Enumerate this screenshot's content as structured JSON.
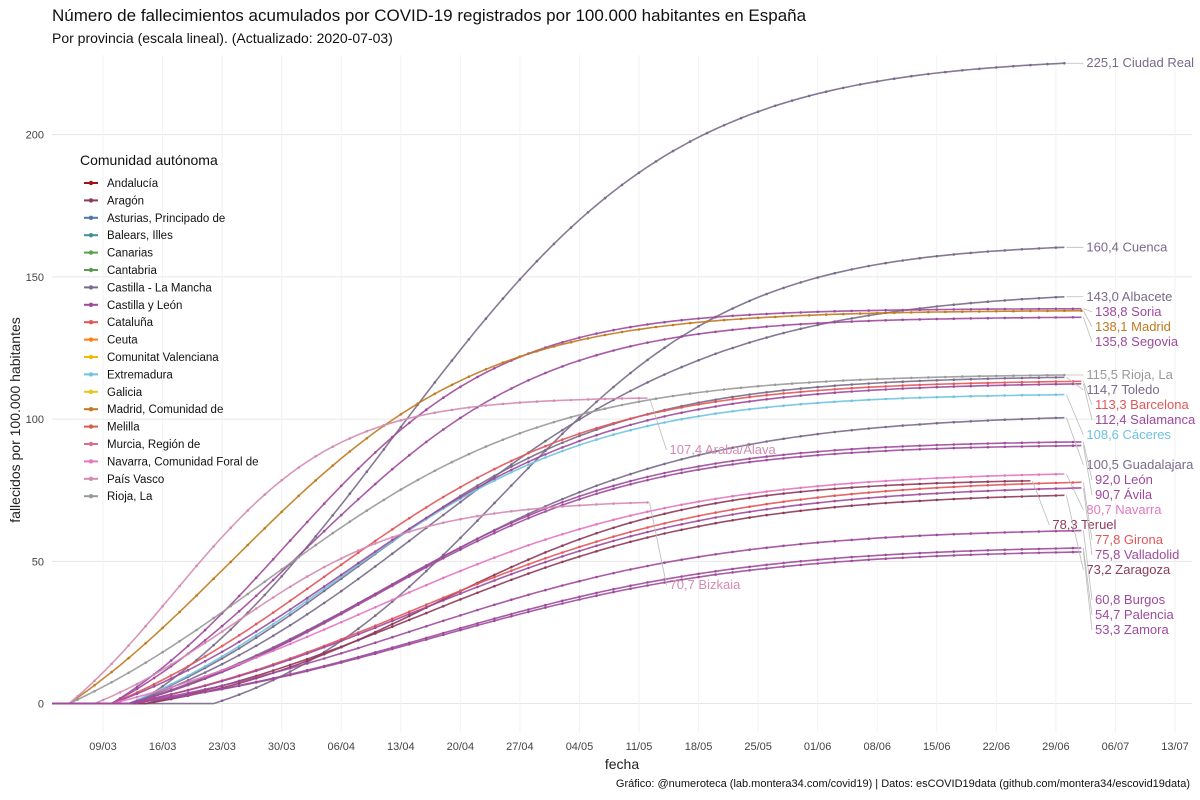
{
  "header": {
    "title": "Número de fallecimientos acumulados por COVID-19 registrados por 100.000 habitantes en España",
    "subtitle": "Por provincia  (escala lineal). (Actualizado: 2020-07-03)"
  },
  "caption": "Gráfico: @numeroteca (lab.montera34.com/covid19) | Datos: esCOVID19data (github.com/montera34/escovid19data)",
  "chart_data": {
    "type": "line",
    "xlabel": "fecha",
    "ylabel": "fallecidos por 100.000 habitantes",
    "x_ticks": [
      "09/03",
      "16/03",
      "23/03",
      "30/03",
      "06/04",
      "13/04",
      "20/04",
      "27/04",
      "04/05",
      "11/05",
      "18/05",
      "25/05",
      "01/06",
      "08/06",
      "15/06",
      "22/06",
      "29/06",
      "06/07",
      "13/07"
    ],
    "y_ticks": [
      0,
      50,
      100,
      150,
      200
    ],
    "xlim": [
      "2020-03-03",
      "2020-07-15"
    ],
    "ylim": [
      -10,
      228
    ],
    "grid": true,
    "legend": {
      "title": "Comunidad autónoma",
      "placement": "top-left",
      "entries": [
        {
          "name": "Andalucía",
          "color": "#a50f15"
        },
        {
          "name": "Aragón",
          "color": "#8e3a59"
        },
        {
          "name": "Asturias, Principado de",
          "color": "#4e79a7"
        },
        {
          "name": "Balears, Illes",
          "color": "#3f8f9e"
        },
        {
          "name": "Canarias",
          "color": "#59a14f"
        },
        {
          "name": "Cantabria",
          "color": "#5d9a53"
        },
        {
          "name": "Castilla - La Mancha",
          "color": "#7a6a8a"
        },
        {
          "name": "Castilla y León",
          "color": "#9e4a9c"
        },
        {
          "name": "Cataluña",
          "color": "#e15759"
        },
        {
          "name": "Ceuta",
          "color": "#ff7f0e"
        },
        {
          "name": "Comunitat Valenciana",
          "color": "#f5b800"
        },
        {
          "name": "Extremadura",
          "color": "#6fc3df"
        },
        {
          "name": "Galicia",
          "color": "#e6c619"
        },
        {
          "name": "Madrid, Comunidad de",
          "color": "#c07a1f"
        },
        {
          "name": "Melilla",
          "color": "#d4604d"
        },
        {
          "name": "Murcia, Región de",
          "color": "#e06c8c"
        },
        {
          "name": "Navarra, Comunidad Foral de",
          "color": "#e377c2"
        },
        {
          "name": "País Vasco",
          "color": "#d48bb2"
        },
        {
          "name": "Rioja, La",
          "color": "#999999"
        }
      ]
    },
    "series": [
      {
        "label": "225,1 Ciudad Real",
        "community": "Castilla - La Mancha",
        "final": 225.1,
        "start": "2020-03-13",
        "mid": 0.28,
        "steep": 6.5,
        "end": "2020-06-30"
      },
      {
        "label": "160,4 Cuenca",
        "community": "Castilla - La Mancha",
        "final": 160.4,
        "start": "2020-03-22",
        "mid": 0.34,
        "steep": 7,
        "end": "2020-06-30"
      },
      {
        "label": "143,0 Albacete",
        "community": "Castilla - La Mancha",
        "final": 143.0,
        "start": "2020-03-12",
        "mid": 0.32,
        "steep": 6,
        "end": "2020-06-30"
      },
      {
        "label": "138,8 Soria",
        "community": "Castilla y León",
        "final": 138.8,
        "start": "2020-03-10",
        "mid": 0.18,
        "steep": 9,
        "end": "2020-07-02"
      },
      {
        "label": "138,1 Madrid",
        "community": "Madrid, Comunidad de",
        "final": 138.1,
        "start": "2020-03-05",
        "mid": 0.16,
        "steep": 8,
        "end": "2020-07-02"
      },
      {
        "label": "135,8 Segovia",
        "community": "Castilla y León",
        "final": 135.8,
        "start": "2020-03-10",
        "mid": 0.2,
        "steep": 8,
        "end": "2020-07-02"
      },
      {
        "label": "115,5 Rioja, La",
        "community": "Rioja, La",
        "final": 115.5,
        "start": "2020-03-05",
        "mid": 0.2,
        "steep": 7,
        "end": "2020-06-30"
      },
      {
        "label": "114,7 Toledo",
        "community": "Castilla - La Mancha",
        "final": 114.7,
        "start": "2020-03-12",
        "mid": 0.24,
        "steep": 7,
        "end": "2020-06-30"
      },
      {
        "label": "113,3 Barcelona",
        "community": "Cataluña",
        "final": 113.3,
        "start": "2020-03-10",
        "mid": 0.22,
        "steep": 7,
        "end": "2020-07-02"
      },
      {
        "label": "108,6 Cáceres",
        "community": "Extremadura",
        "final": 108.6,
        "start": "2020-03-12",
        "mid": 0.22,
        "steep": 7,
        "end": "2020-06-30"
      },
      {
        "label": "112,4 Salamanca",
        "community": "Castilla y León",
        "final": 112.4,
        "start": "2020-03-10",
        "mid": 0.24,
        "steep": 7,
        "end": "2020-07-02"
      },
      {
        "label": "107,4 Araba/Álava",
        "community": "País Vasco",
        "final": 107.4,
        "start": "2020-03-05",
        "mid": 0.18,
        "steep": 7,
        "end": "2020-05-12"
      },
      {
        "label": "100,5 Guadalajara",
        "community": "Castilla - La Mancha",
        "final": 100.5,
        "start": "2020-03-12",
        "mid": 0.28,
        "steep": 6,
        "end": "2020-06-30"
      },
      {
        "label": "92,0 León",
        "community": "Castilla y León",
        "final": 92.0,
        "start": "2020-03-12",
        "mid": 0.26,
        "steep": 7,
        "end": "2020-07-02"
      },
      {
        "label": "90,7 Ávila",
        "community": "Castilla y León",
        "final": 90.7,
        "start": "2020-03-12",
        "mid": 0.26,
        "steep": 7,
        "end": "2020-07-02"
      },
      {
        "label": "78,3 Teruel",
        "community": "Aragón",
        "final": 78.3,
        "start": "2020-03-14",
        "mid": 0.33,
        "steep": 7,
        "end": "2020-06-26"
      },
      {
        "label": "80,7 Navarra",
        "community": "Navarra, Comunidad Foral de",
        "final": 80.7,
        "start": "2020-03-10",
        "mid": 0.27,
        "steep": 6,
        "end": "2020-06-30"
      },
      {
        "label": "77,8 Girona",
        "community": "Cataluña",
        "final": 77.8,
        "start": "2020-03-12",
        "mid": 0.3,
        "steep": 6,
        "end": "2020-07-02"
      },
      {
        "label": "70,7 Bizkaia",
        "community": "País Vasco",
        "final": 70.7,
        "start": "2020-03-08",
        "mid": 0.25,
        "steep": 6,
        "end": "2020-05-12"
      },
      {
        "label": "73,2 Zaragoza",
        "community": "Aragón",
        "final": 73.2,
        "start": "2020-03-14",
        "mid": 0.3,
        "steep": 6,
        "end": "2020-06-30"
      },
      {
        "label": "75,8 Valladolid",
        "community": "Castilla y León",
        "final": 75.8,
        "start": "2020-03-12",
        "mid": 0.3,
        "steep": 6,
        "end": "2020-07-02"
      },
      {
        "label": "60,8 Burgos",
        "community": "Castilla y León",
        "final": 60.8,
        "start": "2020-03-12",
        "mid": 0.3,
        "steep": 6,
        "end": "2020-07-02"
      },
      {
        "label": "54,7 Palencia",
        "community": "Castilla y León",
        "final": 54.7,
        "start": "2020-03-12",
        "mid": 0.32,
        "steep": 6,
        "end": "2020-07-02"
      },
      {
        "label": "53,3 Zamora",
        "community": "Castilla y León",
        "final": 53.3,
        "start": "2020-03-12",
        "mid": 0.32,
        "steep": 6,
        "end": "2020-07-02"
      }
    ]
  }
}
